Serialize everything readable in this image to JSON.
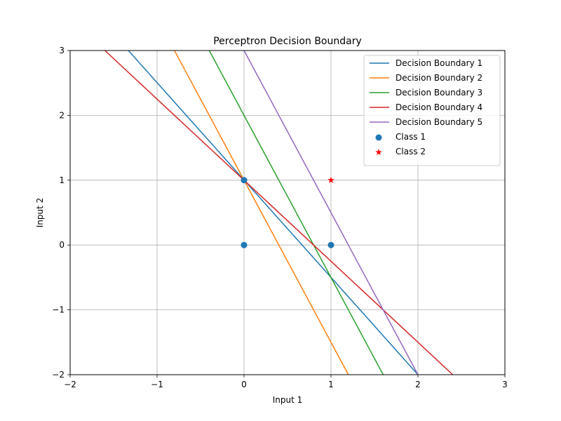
{
  "chart_data": {
    "type": "line",
    "title": "Perceptron Decision Boundary",
    "xlabel": "Input 1",
    "ylabel": "Input 2",
    "xlim": [
      -2,
      3
    ],
    "ylim": [
      -2,
      3
    ],
    "xticks": [
      "−2",
      "−1",
      "0",
      "1",
      "2",
      "3"
    ],
    "yticks": [
      "−2",
      "−1",
      "0",
      "1",
      "2",
      "3"
    ],
    "grid": true,
    "legend_position": "top-right",
    "series": [
      {
        "name": "Decision Boundary 1",
        "color": "#1f77b4",
        "points": [
          [
            -1.33,
            3
          ],
          [
            2,
            -2
          ]
        ]
      },
      {
        "name": "Decision Boundary 2",
        "color": "#ff7f0e",
        "points": [
          [
            -0.8,
            3
          ],
          [
            1.2,
            -2
          ]
        ]
      },
      {
        "name": "Decision Boundary 3",
        "color": "#2ca02c",
        "points": [
          [
            -0.4,
            3
          ],
          [
            1.6,
            -2
          ]
        ]
      },
      {
        "name": "Decision Boundary 4",
        "color": "#d62728",
        "points": [
          [
            -1.6,
            3
          ],
          [
            2.4,
            -2
          ]
        ]
      },
      {
        "name": "Decision Boundary 5",
        "color": "#9467bd",
        "points": [
          [
            0,
            3
          ],
          [
            2,
            -2
          ]
        ]
      }
    ],
    "scatter": [
      {
        "name": "Class 1",
        "color": "#1f77b4",
        "marker": "circle",
        "points": [
          [
            0,
            0
          ],
          [
            0,
            1
          ],
          [
            1,
            0
          ]
        ]
      },
      {
        "name": "Class 2",
        "color": "#ff0000",
        "marker": "star",
        "points": [
          [
            1,
            1
          ]
        ]
      }
    ]
  }
}
